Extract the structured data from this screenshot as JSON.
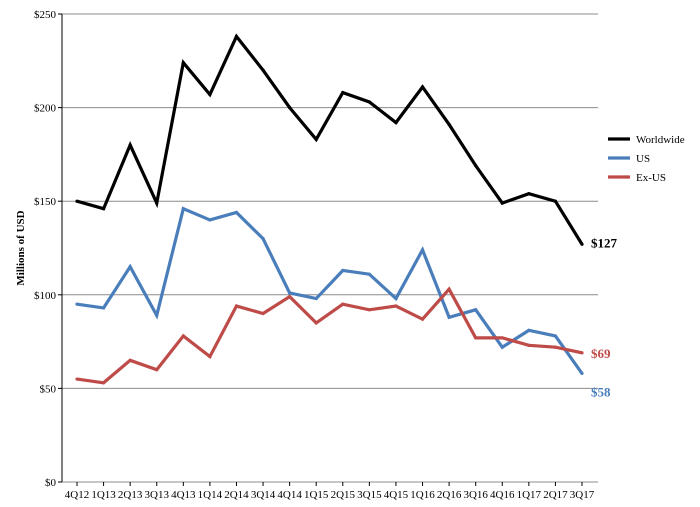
{
  "chart_data": {
    "type": "line",
    "title": "",
    "xlabel": "",
    "ylabel": "Millions of USD",
    "ylim": [
      0,
      250
    ],
    "y_ticks": [
      0,
      50,
      100,
      150,
      200,
      250
    ],
    "y_tick_labels": [
      "$0",
      "$50",
      "$100",
      "$150",
      "$200",
      "$250"
    ],
    "grid": true,
    "legend_position": "right",
    "categories": [
      "4Q12",
      "1Q13",
      "2Q13",
      "3Q13",
      "4Q13",
      "1Q14",
      "2Q14",
      "3Q14",
      "4Q14",
      "1Q15",
      "2Q15",
      "3Q15",
      "4Q15",
      "1Q16",
      "2Q16",
      "3Q16",
      "4Q16",
      "1Q17",
      "2Q17",
      "3Q17"
    ],
    "series": [
      {
        "name": "Worldwide",
        "color": "#000000",
        "values": [
          150,
          146,
          180,
          149,
          224,
          207,
          238,
          220,
          200,
          183,
          208,
          203,
          192,
          211,
          191,
          169,
          149,
          154,
          150,
          127
        ],
        "end_label": "$127"
      },
      {
        "name": "US",
        "color": "#4a7ebb",
        "values": [
          95,
          93,
          115,
          89,
          146,
          140,
          144,
          130,
          101,
          98,
          113,
          111,
          98,
          124,
          88,
          92,
          72,
          81,
          78,
          58
        ],
        "end_label": "$58"
      },
      {
        "name": "Ex-US",
        "color": "#be4b48",
        "values": [
          55,
          53,
          65,
          60,
          78,
          67,
          94,
          90,
          99,
          85,
          95,
          92,
          94,
          87,
          103,
          77,
          77,
          73,
          72,
          69
        ],
        "end_label": "$69"
      }
    ]
  }
}
